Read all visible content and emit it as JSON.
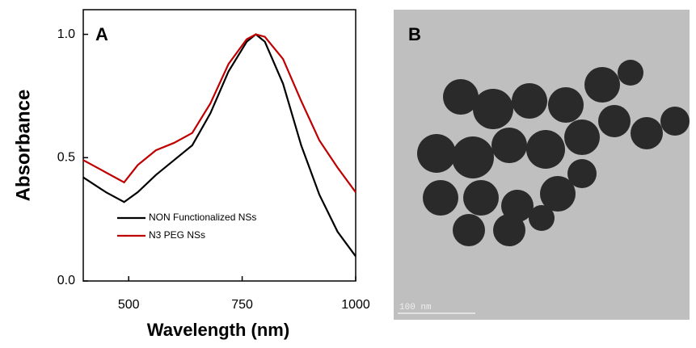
{
  "chart_data": {
    "type": "line",
    "panel_label": "A",
    "x_label": "Wavelength (nm)",
    "y_label": "Absorbance",
    "x": [
      400,
      450,
      490,
      520,
      560,
      600,
      640,
      680,
      720,
      760,
      780,
      800,
      840,
      880,
      920,
      960,
      1000
    ],
    "series": [
      {
        "name": "NON Functionalized NSs",
        "color": "#000000",
        "values": [
          0.42,
          0.36,
          0.32,
          0.36,
          0.43,
          0.49,
          0.55,
          0.68,
          0.85,
          0.97,
          1.0,
          0.97,
          0.8,
          0.55,
          0.35,
          0.2,
          0.1
        ]
      },
      {
        "name": "N3 PEG NSs",
        "color": "#c00000",
        "values": [
          0.49,
          0.44,
          0.4,
          0.47,
          0.53,
          0.56,
          0.6,
          0.72,
          0.88,
          0.98,
          1.0,
          0.99,
          0.9,
          0.73,
          0.57,
          0.46,
          0.36
        ]
      }
    ],
    "xlim": [
      400,
      1000
    ],
    "xticks": [
      500,
      750,
      1000
    ],
    "ylim": [
      0,
      1.1
    ],
    "yticks": [
      {
        "value": 0,
        "label": "0.0"
      },
      {
        "value": 0.5,
        "label": "0.5"
      },
      {
        "value": 1,
        "label": "1.0"
      }
    ]
  },
  "image_panel": {
    "label": "B",
    "scale_bar": "100 nm"
  }
}
